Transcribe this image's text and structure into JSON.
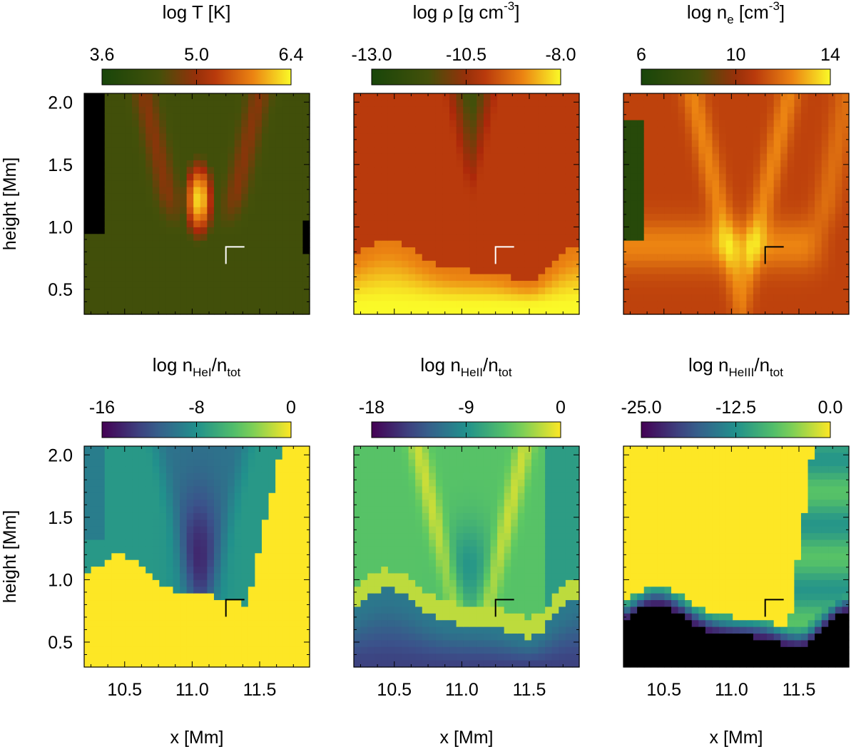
{
  "chart_data": {
    "type": "heatmap",
    "xlabel": "x [Mm]",
    "ylabel": "height [Mm]",
    "x_ticks": [
      10.5,
      11.0,
      11.5
    ],
    "x_tick_labels": [
      "10.5",
      "11.0",
      "11.5"
    ],
    "y_ticks": [
      0.5,
      1.0,
      1.5,
      2.0
    ],
    "y_tick_labels": [
      "0.5",
      "1.0",
      "1.5",
      "2.0"
    ],
    "xlim": [
      10.2,
      11.87
    ],
    "ylim": [
      0.3,
      2.07
    ],
    "marker": {
      "x": 11.25,
      "y": 0.84,
      "shape": "corner"
    },
    "panels": [
      {
        "id": "logT",
        "title_main": "log T [K]",
        "title_sub": "",
        "title_tail": "",
        "title_sup": "",
        "colormap": "heat",
        "colorbar_ticks": [
          3.6,
          5.0,
          6.4
        ],
        "colorbar_tick_labels": [
          "3.6",
          "5.0",
          "6.4"
        ]
      },
      {
        "id": "logrho",
        "title_main": "log ρ [g cm",
        "title_sub": "",
        "title_tail": "]",
        "title_sup": "-3",
        "colormap": "heat",
        "colorbar_ticks": [
          -13.0,
          -10.5,
          -8.0
        ],
        "colorbar_tick_labels": [
          "-13.0",
          "-10.5",
          "-8.0"
        ]
      },
      {
        "id": "logne",
        "title_main": "log n",
        "title_sub": "e",
        "title_tail": " [cm",
        "title_sup": "-3",
        "title_end": "]",
        "colormap": "heat",
        "colorbar_ticks": [
          6,
          10,
          14
        ],
        "colorbar_tick_labels": [
          "6",
          "10",
          "14"
        ]
      },
      {
        "id": "logHeI",
        "title_main": "log n",
        "title_sub": "HeI",
        "title_tail": "/n",
        "title_sub2": "tot",
        "colormap": "viridis",
        "colorbar_ticks": [
          -16,
          -8,
          0
        ],
        "colorbar_tick_labels": [
          "-16",
          "-8",
          "0"
        ]
      },
      {
        "id": "logHeII",
        "title_main": "log n",
        "title_sub": "HeII",
        "title_tail": "/n",
        "title_sub2": "tot",
        "colormap": "viridis",
        "colorbar_ticks": [
          -18,
          -9,
          0
        ],
        "colorbar_tick_labels": [
          "-18",
          "-9",
          "0"
        ]
      },
      {
        "id": "logHeIII",
        "title_main": "log n",
        "title_sub": "HeIII",
        "title_tail": "/n",
        "title_sub2": "tot",
        "colormap": "viridis",
        "colorbar_ticks": [
          -25.0,
          -12.5,
          0.0
        ],
        "colorbar_tick_labels": [
          "-25.0",
          "-12.5",
          "0.0"
        ]
      }
    ]
  }
}
